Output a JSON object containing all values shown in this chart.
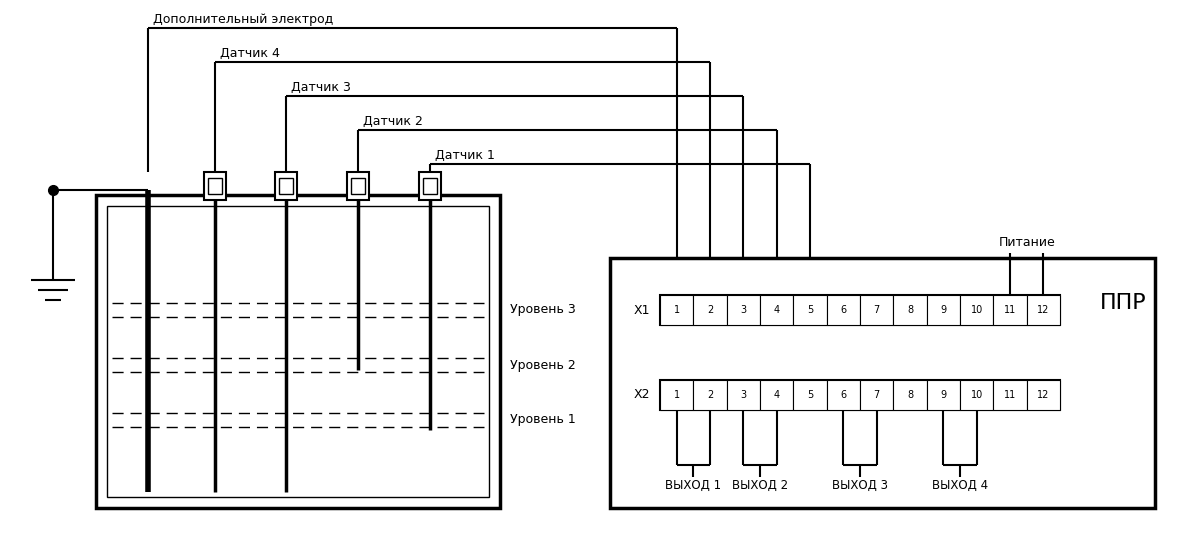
{
  "bg_color": "#ffffff",
  "line_color": "#000000",
  "title_dop": "Дополнительный электрод",
  "label_d4": "Датчик 4",
  "label_d3": "Датчик 3",
  "label_d2": "Датчик 2",
  "label_d1": "Датчик 1",
  "label_u3": "Уровень 3",
  "label_u2": "Уровень 2",
  "label_u1": "Уровень 1",
  "label_x1": "Х1",
  "label_x2": "Х2",
  "label_ppr": "ППР",
  "label_pit": "Питание",
  "label_v1": "ВЫХОД 1",
  "label_v2": "ВЫХОД 2",
  "label_v3": "ВЫХОД 3",
  "label_v4": "ВЫХОД 4"
}
